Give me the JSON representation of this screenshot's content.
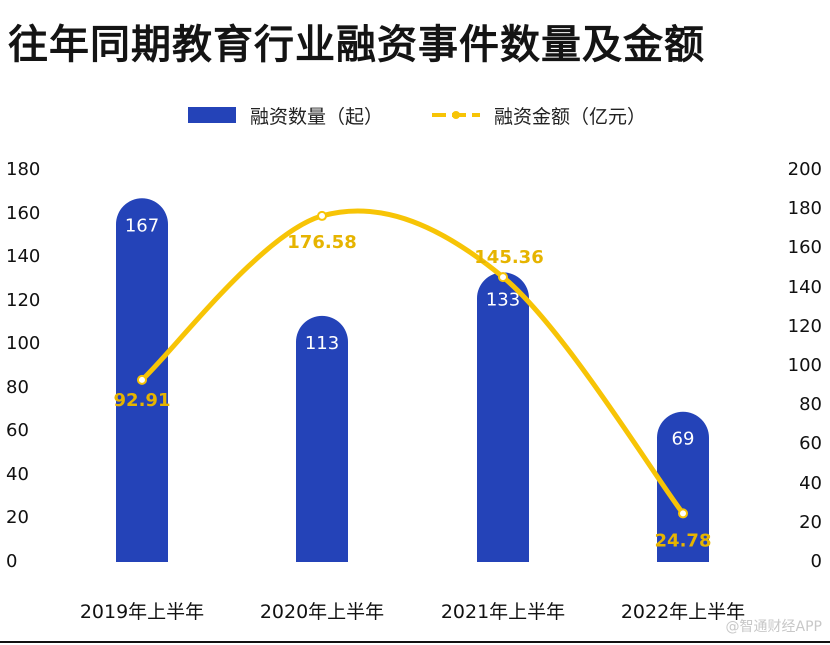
{
  "title": "往年同期教育行业融资事件数量及金额",
  "watermark": "@智通财经APP",
  "colors": {
    "bar": "#2443b8",
    "line": "#f7c406",
    "line_label": "#e6b400",
    "bar_label": "#ffffff",
    "text": "#111111"
  },
  "chart_data": {
    "type": "bar+line",
    "title": "往年同期教育行业融资事件数量及金额",
    "categories": [
      "2019年上半年",
      "2020年上半年",
      "2021年上半年",
      "2022年上半年"
    ],
    "series": [
      {
        "name": "融资数量（起）",
        "type": "bar",
        "axis": "left",
        "values": [
          167,
          113,
          133,
          69
        ]
      },
      {
        "name": "融资金额（亿元）",
        "type": "line",
        "axis": "right",
        "smooth": true,
        "values": [
          92.91,
          176.58,
          145.36,
          24.78
        ],
        "labels": [
          "92.91",
          "176.58",
          "145.36",
          "24.78"
        ]
      }
    ],
    "bar_labels": [
      "167",
      "113",
      "133",
      "69"
    ],
    "left_axis": {
      "ylim": [
        0,
        180
      ],
      "ticks": [
        "0",
        "20",
        "40",
        "60",
        "80",
        "100",
        "120",
        "140",
        "160",
        "180"
      ]
    },
    "right_axis": {
      "ylim": [
        0,
        200
      ],
      "ticks": [
        "0",
        "20",
        "40",
        "60",
        "80",
        "100",
        "120",
        "140",
        "160",
        "180",
        "200"
      ]
    },
    "legend": [
      "融资数量（起）",
      "融资金额（亿元）"
    ],
    "legend_position": "top-center",
    "grid": false
  }
}
